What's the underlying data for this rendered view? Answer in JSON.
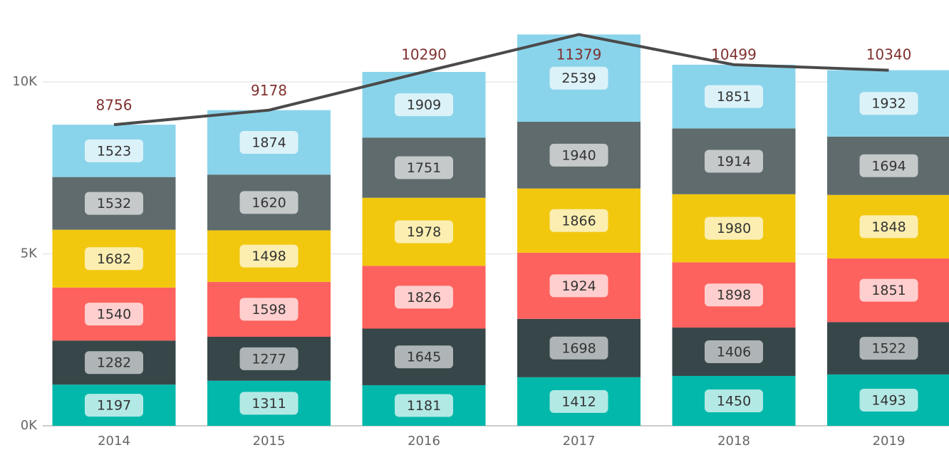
{
  "chart_data": {
    "type": "stacked-bar",
    "categories": [
      "2014",
      "2015",
      "2016",
      "2017",
      "2018",
      "2019"
    ],
    "series": [
      {
        "color": "#01b8aa",
        "label_color": "#b3e9e5",
        "values": [
          1197,
          1311,
          1181,
          1412,
          1450,
          1493
        ]
      },
      {
        "color": "#374649",
        "label_color": "#afb5b6",
        "values": [
          1282,
          1277,
          1645,
          1698,
          1406,
          1522
        ]
      },
      {
        "color": "#fd625e",
        "label_color": "#fecfce",
        "values": [
          1540,
          1598,
          1826,
          1924,
          1898,
          1851
        ]
      },
      {
        "color": "#f2c80f",
        "label_color": "#fbeeb0",
        "values": [
          1682,
          1498,
          1978,
          1866,
          1980,
          1848
        ]
      },
      {
        "color": "#5f6b6d",
        "label_color": "#c5c9ca",
        "values": [
          1532,
          1620,
          1751,
          1940,
          1914,
          1694
        ]
      },
      {
        "color": "#8ad4eb",
        "label_color": "#dcf2f9",
        "values": [
          1523,
          1874,
          1909,
          2539,
          1851,
          1932
        ]
      }
    ],
    "line": {
      "type": "line",
      "color": "#4a4a4a",
      "label_color": "#7f312f",
      "values": [
        8756,
        9178,
        10290,
        11379,
        10499,
        10340
      ]
    },
    "ylim": [
      0,
      12000
    ],
    "yticks": [
      {
        "value": 0,
        "label": "0K"
      },
      {
        "value": 5000,
        "label": "5K"
      },
      {
        "value": 10000,
        "label": "10K"
      }
    ],
    "grid": true
  }
}
